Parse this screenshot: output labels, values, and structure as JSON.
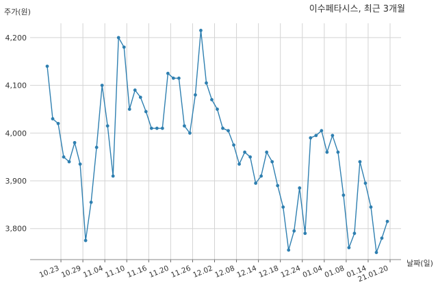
{
  "chart_data": {
    "type": "line",
    "title": "이수페타시스, 최근 3개월",
    "ylabel": "주가(원)",
    "xlabel": "날짜(일)",
    "ylim": [
      3735,
      4230
    ],
    "yticks": [
      3800,
      3900,
      4000,
      4100,
      4200
    ],
    "ytick_labels": [
      "3,800",
      "3,900",
      "4,000",
      "4,100",
      "4,200"
    ],
    "xtick_labels": [
      "10.23",
      "10.29",
      "11.04",
      "11.10",
      "11.16",
      "11.20",
      "11.26",
      "12.02",
      "12.08",
      "12.14",
      "12.18",
      "12.24",
      "01.04",
      "01.08",
      "01.14",
      "21.01.20"
    ],
    "xtick_positions": [
      2.5,
      6.5,
      10.5,
      14.5,
      18.5,
      22.5,
      26.5,
      30.5,
      34.5,
      38.5,
      42.5,
      46.5,
      50.5,
      54.5,
      58.5,
      62.5
    ],
    "grid": true,
    "line_color": "#2e7fb0",
    "series": [
      {
        "values": [
          4140,
          4030,
          4020,
          3950,
          3940,
          3980,
          3935,
          3775,
          3855,
          3970,
          4100,
          4015,
          3910,
          4200,
          4180,
          4050,
          4090,
          4075,
          4045,
          4010,
          4010,
          4010,
          4125,
          4115,
          4115,
          4015,
          4000,
          4080,
          4215,
          4105,
          4070,
          4050,
          4010,
          4005,
          3975,
          3935,
          3960,
          3950,
          3895,
          3910,
          3960,
          3940,
          3890,
          3845,
          3755,
          3795,
          3885,
          3790,
          3990,
          3995,
          4005,
          3960,
          3995,
          3960,
          3870,
          3760,
          3790,
          3940,
          3895,
          3845,
          3750,
          3780,
          3815
        ]
      }
    ]
  }
}
